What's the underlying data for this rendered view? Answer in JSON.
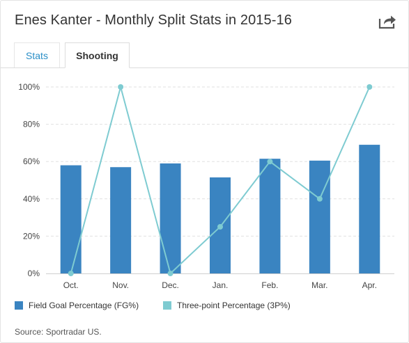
{
  "header": {
    "title": "Enes Kanter - Monthly Split Stats in 2015-16",
    "share_icon": "share-arrow-icon"
  },
  "tabs": [
    {
      "label": "Stats",
      "active": false
    },
    {
      "label": "Shooting",
      "active": true
    }
  ],
  "colors": {
    "fg_bar": "#3a84c1",
    "three_pt_line": "#7ecbd1",
    "grid": "#e0e0e0",
    "axis_text": "#444444"
  },
  "chart_data": {
    "type": "bar",
    "categories": [
      "Oct.",
      "Nov.",
      "Dec.",
      "Jan.",
      "Feb.",
      "Mar.",
      "Apr."
    ],
    "series": [
      {
        "name": "Field Goal Percentage (FG%)",
        "type": "bar",
        "values": [
          58,
          57,
          59,
          51.5,
          61.5,
          60.5,
          69
        ]
      },
      {
        "name": "Three-point Percentage (3P%)",
        "type": "line",
        "values": [
          0,
          100,
          0,
          25,
          60,
          40,
          100
        ]
      }
    ],
    "y_ticks": [
      "0%",
      "20%",
      "40%",
      "60%",
      "80%",
      "100%"
    ],
    "ylim": [
      0,
      100
    ],
    "grid": true,
    "legend": "bottom-left"
  },
  "legend": [
    {
      "label": "Field Goal Percentage (FG%)"
    },
    {
      "label": "Three-point Percentage (3P%)"
    }
  ],
  "source": "Source: Sportradar US."
}
